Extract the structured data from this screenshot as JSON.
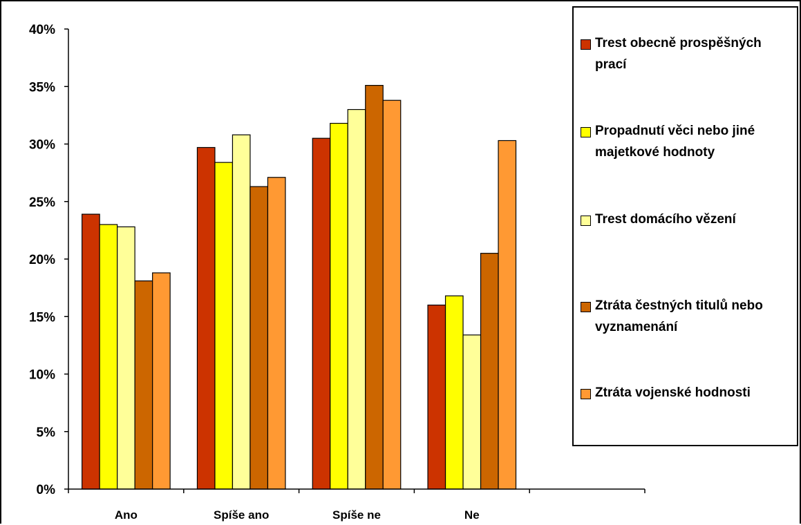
{
  "chart_data": {
    "type": "bar",
    "title": "",
    "xlabel": "",
    "ylabel": "",
    "categories": [
      "Ano",
      "Spíše ano",
      "Spíše ne",
      "Ne"
    ],
    "ylim": [
      0,
      40
    ],
    "yticks": [
      "0%",
      "5%",
      "10%",
      "15%",
      "20%",
      "25%",
      "30%",
      "35%",
      "40%"
    ],
    "grid": false,
    "legend_position": "right",
    "series": [
      {
        "name": "Trest obecně prospěšných prací",
        "color": "#cc3300",
        "values": [
          23.9,
          29.7,
          30.5,
          16.0
        ]
      },
      {
        "name": "Propadnutí věci nebo jiné majetkové hodnoty",
        "color": "#ffff00",
        "values": [
          23.0,
          28.4,
          31.8,
          16.8
        ]
      },
      {
        "name": "Trest domácího vězení",
        "color": "#ffff99",
        "values": [
          22.8,
          30.8,
          33.0,
          13.4
        ]
      },
      {
        "name": "Ztráta čestných titulů nebo vyznamenání",
        "color": "#cc6600",
        "values": [
          18.1,
          26.3,
          35.1,
          20.5
        ]
      },
      {
        "name": "Ztráta vojenské hodnosti",
        "color": "#ff9933",
        "values": [
          18.8,
          27.1,
          33.8,
          30.3
        ]
      }
    ]
  }
}
